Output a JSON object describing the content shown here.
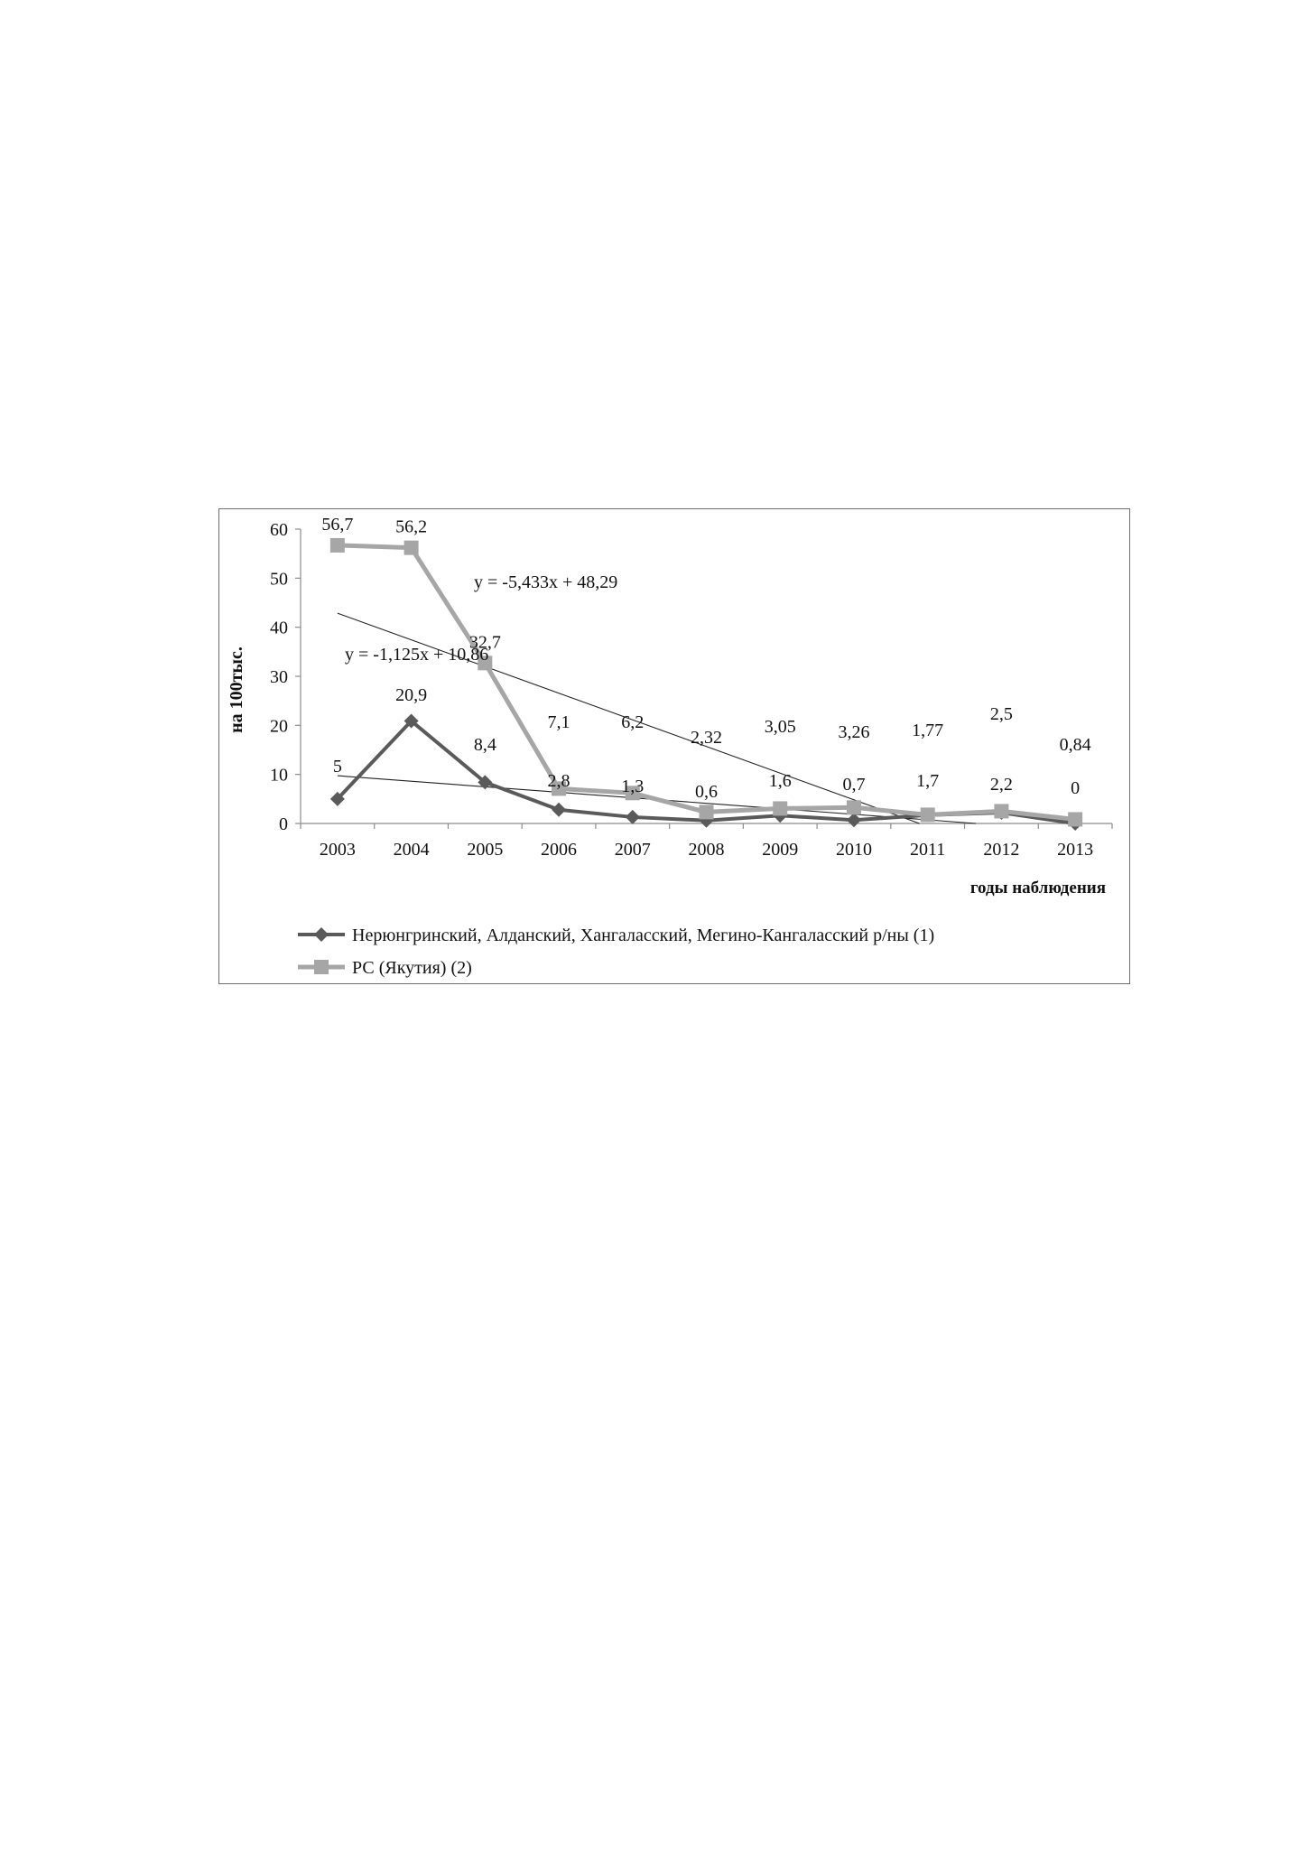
{
  "chart_data": {
    "type": "line",
    "ylabel": "на 100тыс.",
    "xlabel": "годы наблюдения",
    "ylim": [
      0,
      60
    ],
    "yticks": [
      0,
      10,
      20,
      30,
      40,
      50,
      60
    ],
    "categories": [
      "2003",
      "2004",
      "2005",
      "2006",
      "2007",
      "2008",
      "2009",
      "2010",
      "2011",
      "2012",
      "2013"
    ],
    "grid": false,
    "legend_position": "bottom",
    "series": [
      {
        "name": "Нерюнгринский, Алданский, Хангаласский, Мегино-Кангаласский р/ны (1)",
        "color": "#5a5a5a",
        "marker": "diamond",
        "values": [
          5,
          20.9,
          8.4,
          2.8,
          1.3,
          0.6,
          1.6,
          0.7,
          1.7,
          2.2,
          0
        ],
        "labels": [
          "5",
          "20,9",
          "8,4",
          "2,8",
          "1,3",
          "0,6",
          "1,6",
          "0,7",
          "1,7",
          "2,2",
          "0"
        ]
      },
      {
        "name": "РС (Якутия) (2)",
        "color": "#a6a6a6",
        "marker": "square",
        "values": [
          56.7,
          56.2,
          32.7,
          7.1,
          6.2,
          2.32,
          3.05,
          3.26,
          1.77,
          2.5,
          0.84
        ],
        "labels": [
          "56,7",
          "56,2",
          "32,7",
          "7,1",
          "6,2",
          "2,32",
          "3,05",
          "3,26",
          "1,77",
          "2,5",
          "0,84"
        ]
      }
    ],
    "trendlines": [
      {
        "series": 1,
        "equation": "y = -5,433x + 48,29",
        "slope": -5.433,
        "intercept": 48.29
      },
      {
        "series": 0,
        "equation": "y = -1,125x + 10,86",
        "slope": -1.125,
        "intercept": 10.86
      }
    ]
  }
}
